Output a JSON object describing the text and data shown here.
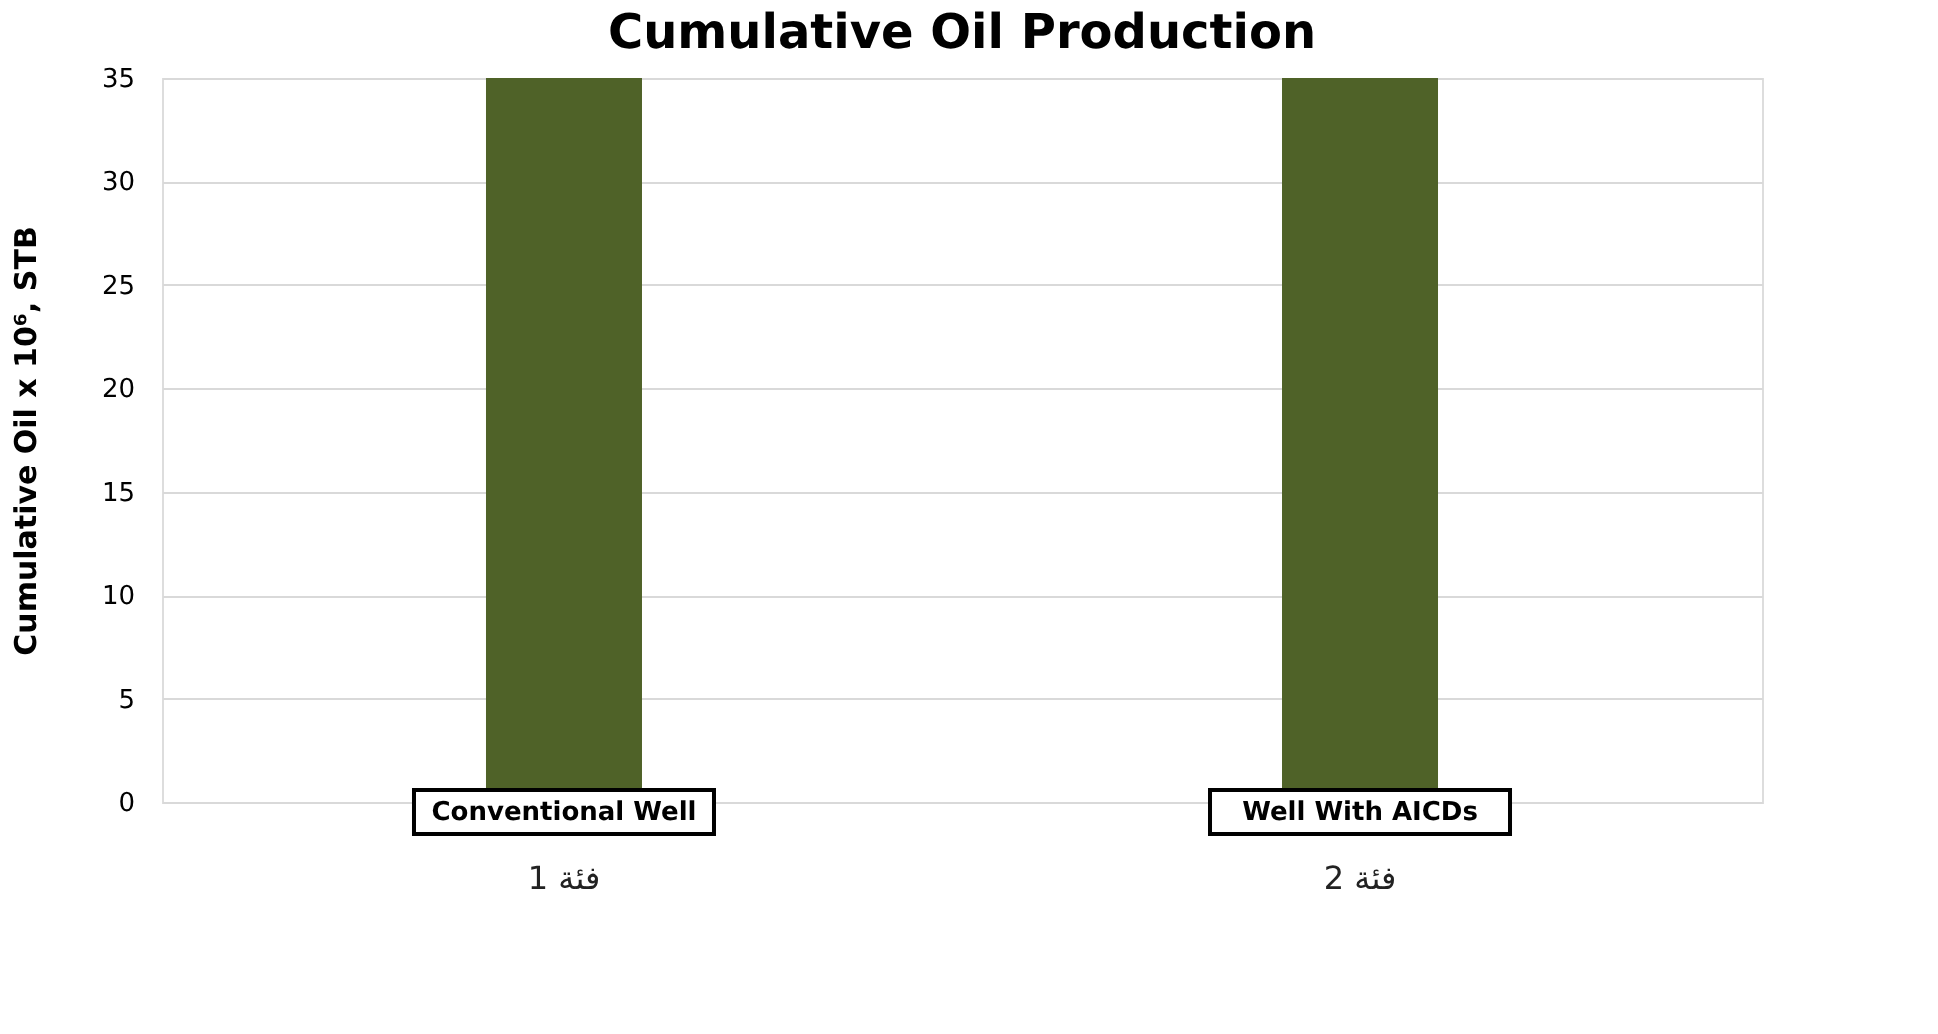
{
  "chart_data": {
    "type": "bar",
    "title": "Cumulative Oil Production",
    "ylabel": "Cumulative Oil x 10⁶, STB",
    "categories": [
      "فئة 1",
      "فئة 2"
    ],
    "values": [
      35,
      35
    ],
    "color": "#4f6228",
    "ylim": [
      0,
      35
    ],
    "yticks": [
      0,
      5,
      10,
      15,
      20,
      25,
      30,
      35
    ],
    "grid": "y",
    "annotations": [
      {
        "text": "Conventional Well",
        "x": "فئة 1",
        "y": 0
      },
      {
        "text": "Well With AICDs",
        "x": "فئة 2",
        "y": 0
      }
    ]
  }
}
